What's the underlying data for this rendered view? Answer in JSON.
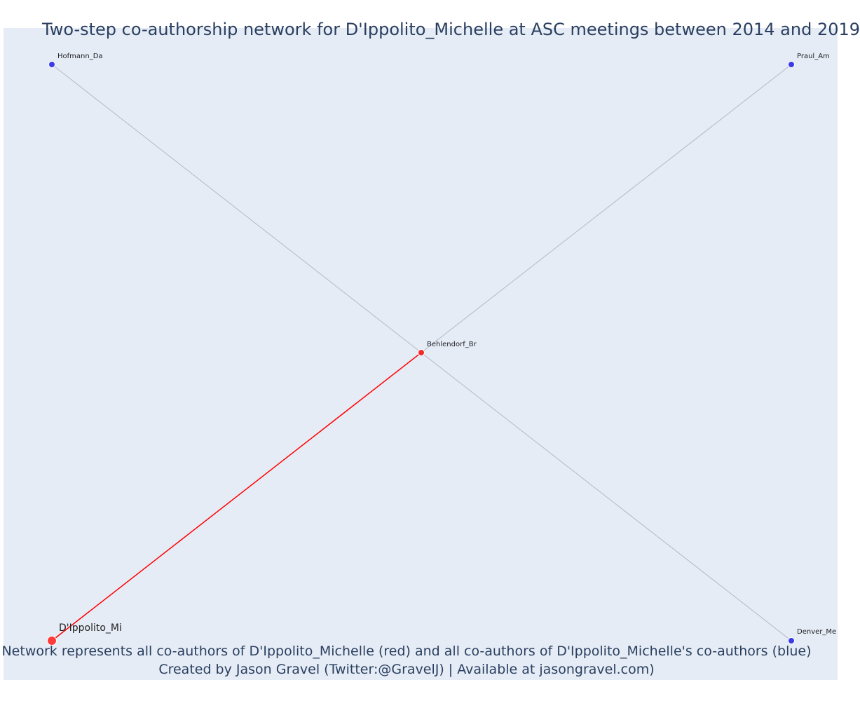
{
  "title": "Two-step co-authorship network for D'Ippolito_Michelle at ASC meetings between 2014 and 2019",
  "caption": {
    "line1": "Network represents all co-authors of D'Ippolito_Michelle (red) and all co-authors of D'Ippolito_Michelle's co-authors (blue)",
    "line2": "Created by Jason Gravel (Twitter:@GravelJ) | Available at jasongravel.com)"
  },
  "colors": {
    "background": "#e5ecf6",
    "focal_node": "#ff3b3b",
    "first_step_node": "#ee2a2a",
    "second_step_node": "#3a3ae8",
    "focal_edge": "#ff0000",
    "other_edge": "#b5b8c8",
    "node_outline": "#ffffff",
    "text": "#2a3f5f"
  },
  "network": {
    "nodes": [
      {
        "id": "dippolito",
        "label": "D'Ippolito_Mi",
        "role": "focal"
      },
      {
        "id": "behlendorf",
        "label": "Behlendorf_Br",
        "role": "co-author"
      },
      {
        "id": "hofmann",
        "label": "Hofmann_Da",
        "role": "co-author-of-co-author"
      },
      {
        "id": "praul",
        "label": "Praul_Am",
        "role": "co-author-of-co-author"
      },
      {
        "id": "denver",
        "label": "Denver_Me",
        "role": "co-author-of-co-author"
      }
    ],
    "edges": [
      {
        "source": "dippolito",
        "target": "behlendorf",
        "type": "focal"
      },
      {
        "source": "behlendorf",
        "target": "hofmann",
        "type": "other"
      },
      {
        "source": "behlendorf",
        "target": "praul",
        "type": "other"
      },
      {
        "source": "behlendorf",
        "target": "denver",
        "type": "other"
      }
    ]
  }
}
